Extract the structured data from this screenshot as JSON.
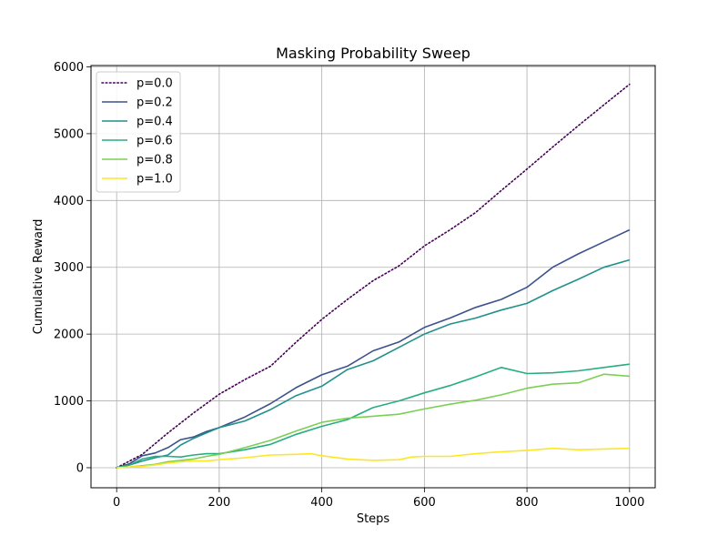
{
  "chart_data": {
    "type": "line",
    "title": "Masking Probability Sweep",
    "xlabel": "Steps",
    "ylabel": "Cumulative Reward",
    "xlim": [
      -50,
      1050
    ],
    "ylim": [
      -300,
      6020
    ],
    "xticks": [
      0,
      200,
      400,
      600,
      800,
      1000
    ],
    "yticks": [
      0,
      1000,
      2000,
      3000,
      4000,
      5000,
      6000
    ],
    "grid": true,
    "legend_position": "upper-left",
    "series": [
      {
        "name": "p=0.0",
        "color": "#440154",
        "style": "dotted",
        "x": [
          0,
          50,
          100,
          150,
          200,
          250,
          300,
          350,
          400,
          450,
          500,
          550,
          600,
          650,
          700,
          750,
          800,
          850,
          900,
          950,
          1000
        ],
        "y": [
          0,
          200,
          520,
          820,
          1100,
          1320,
          1520,
          1880,
          2220,
          2520,
          2800,
          3020,
          3320,
          3560,
          3820,
          4150,
          4470,
          4800,
          5120,
          5430,
          5740
        ]
      },
      {
        "name": "p=0.2",
        "color": "#3b528b",
        "style": "solid",
        "x": [
          0,
          25,
          50,
          75,
          100,
          125,
          150,
          175,
          200,
          250,
          300,
          350,
          400,
          450,
          500,
          550,
          600,
          650,
          700,
          750,
          800,
          850,
          900,
          950,
          1000
        ],
        "y": [
          0,
          60,
          180,
          220,
          300,
          420,
          460,
          540,
          600,
          760,
          960,
          1200,
          1390,
          1520,
          1750,
          1880,
          2100,
          2240,
          2400,
          2520,
          2700,
          3000,
          3200,
          3380,
          3560
        ]
      },
      {
        "name": "p=0.4",
        "color": "#21918c",
        "style": "solid",
        "x": [
          0,
          25,
          50,
          75,
          100,
          125,
          150,
          175,
          200,
          250,
          300,
          350,
          400,
          450,
          500,
          550,
          600,
          650,
          700,
          750,
          800,
          850,
          900,
          950,
          1000
        ],
        "y": [
          0,
          40,
          100,
          150,
          190,
          340,
          440,
          520,
          600,
          700,
          870,
          1080,
          1220,
          1470,
          1600,
          1800,
          2000,
          2150,
          2240,
          2360,
          2460,
          2650,
          2820,
          3000,
          3110
        ]
      },
      {
        "name": "p=0.6",
        "color": "#27ad81",
        "style": "solid",
        "x": [
          0,
          25,
          50,
          75,
          100,
          125,
          150,
          175,
          200,
          250,
          300,
          350,
          400,
          450,
          500,
          550,
          600,
          650,
          700,
          750,
          800,
          850,
          900,
          950,
          1000
        ],
        "y": [
          0,
          40,
          130,
          170,
          170,
          160,
          190,
          210,
          210,
          270,
          350,
          500,
          620,
          720,
          900,
          1000,
          1120,
          1230,
          1360,
          1500,
          1410,
          1420,
          1450,
          1500,
          1550
        ]
      },
      {
        "name": "p=0.8",
        "color": "#7ad151",
        "style": "solid",
        "x": [
          0,
          25,
          50,
          75,
          100,
          125,
          150,
          175,
          200,
          250,
          300,
          350,
          400,
          450,
          500,
          550,
          600,
          650,
          700,
          750,
          800,
          850,
          900,
          950,
          1000
        ],
        "y": [
          0,
          10,
          30,
          50,
          90,
          110,
          130,
          170,
          200,
          300,
          410,
          550,
          680,
          740,
          770,
          800,
          880,
          950,
          1010,
          1090,
          1190,
          1250,
          1270,
          1400,
          1370
        ]
      },
      {
        "name": "p=1.0",
        "color": "#fde725",
        "style": "solid",
        "x": [
          0,
          25,
          50,
          75,
          100,
          125,
          150,
          175,
          200,
          250,
          300,
          350,
          380,
          400,
          450,
          500,
          550,
          575,
          600,
          650,
          700,
          750,
          800,
          850,
          900,
          950,
          1000
        ],
        "y": [
          0,
          10,
          20,
          40,
          70,
          90,
          100,
          100,
          120,
          150,
          190,
          200,
          210,
          180,
          130,
          110,
          120,
          160,
          170,
          170,
          210,
          240,
          260,
          290,
          270,
          280,
          290
        ]
      }
    ]
  }
}
